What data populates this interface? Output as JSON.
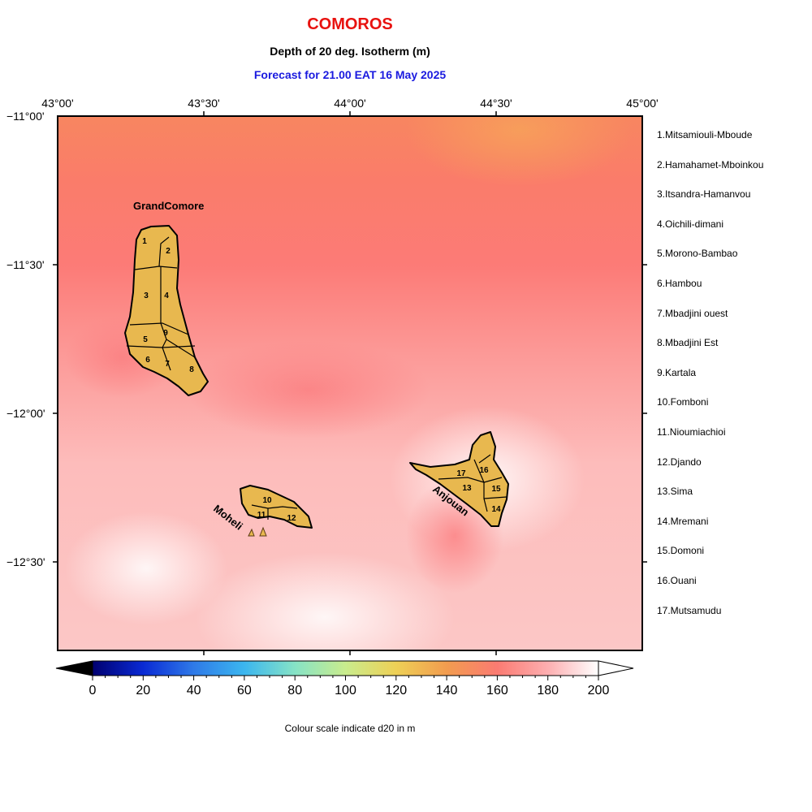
{
  "header": {
    "title": "COMOROS",
    "subtitle": "Depth of 20 deg. Isotherm (m)",
    "forecast": "Forecast for  21.00 EAT 16 May 2025"
  },
  "axes": {
    "lon_ticks": [
      "43°00'",
      "43°30'",
      "44°00'",
      "44°30'",
      "45°00'"
    ],
    "lat_ticks": [
      "−11°00'",
      "−11°30'",
      "−12°00'",
      "−12°30'"
    ]
  },
  "islands": {
    "grand_comore": "GrandComore",
    "moheli": "Moheli",
    "anjouan": "Anjouan"
  },
  "regions": [
    {
      "num": "1",
      "name": "1.Mitsamiouli-Mboude"
    },
    {
      "num": "2",
      "name": "2.Hamahamet-Mboinkou"
    },
    {
      "num": "3",
      "name": "3.Itsandra-Hamanvou"
    },
    {
      "num": "4",
      "name": "4.Oichili-dimani"
    },
    {
      "num": "5",
      "name": "5.Morono-Bambao"
    },
    {
      "num": "6",
      "name": "6.Hambou"
    },
    {
      "num": "7",
      "name": "7.Mbadjini ouest"
    },
    {
      "num": "8",
      "name": "8.Mbadjini Est"
    },
    {
      "num": "9",
      "name": "9.Kartala"
    },
    {
      "num": "10",
      "name": "10.Fomboni"
    },
    {
      "num": "11",
      "name": "11.Nioumiachioi"
    },
    {
      "num": "12",
      "name": "12.Djando"
    },
    {
      "num": "13",
      "name": "13.Sima"
    },
    {
      "num": "14",
      "name": "14.Mremani"
    },
    {
      "num": "15",
      "name": "15.Domoni"
    },
    {
      "num": "16",
      "name": "16.Ouani"
    },
    {
      "num": "17",
      "name": "17.Mutsamudu"
    }
  ],
  "colorbar": {
    "labels": [
      "0",
      "20",
      "40",
      "60",
      "80",
      "100",
      "120",
      "140",
      "160",
      "180",
      "200"
    ],
    "min": 0,
    "max": 200,
    "caption": "Colour scale indicate d20 in m",
    "colors": [
      "#000070",
      "#0a2ad4",
      "#2f7ae8",
      "#3bb6ef",
      "#86e3c6",
      "#c9ec8d",
      "#eed056",
      "#f29c4f",
      "#fb7b72",
      "#fdaeb0",
      "#ffffff"
    ]
  }
}
